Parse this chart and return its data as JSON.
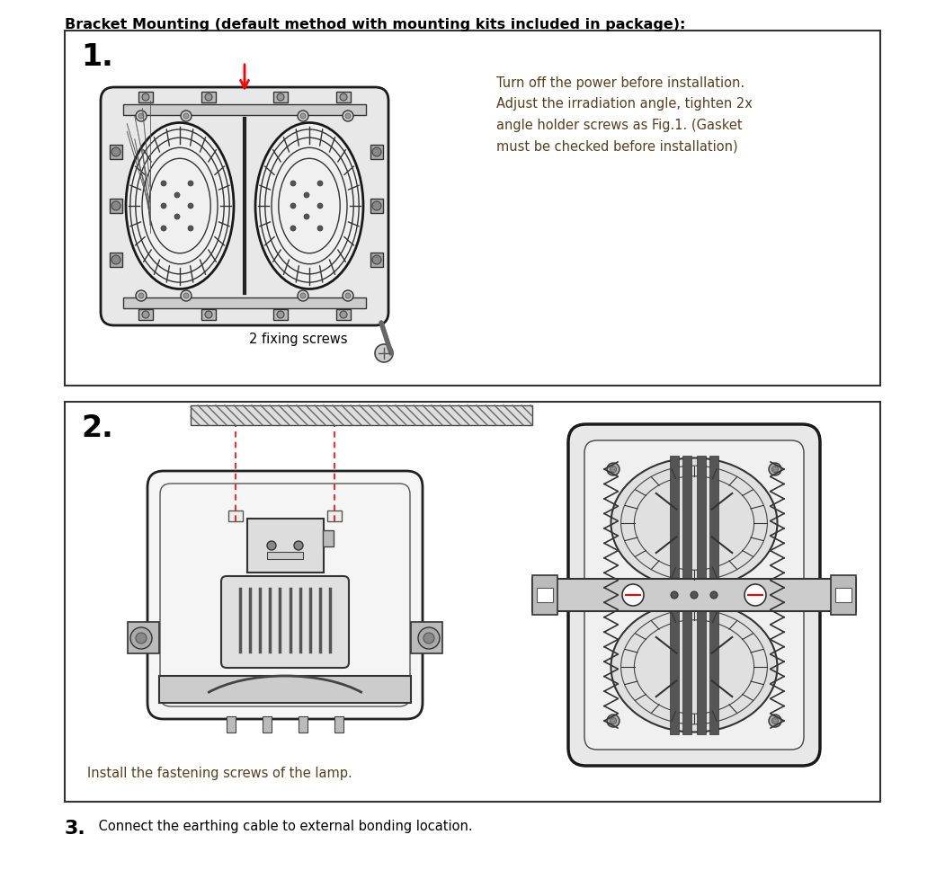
{
  "title": "Bracket Mounting (default method with mounting kits included in package):",
  "title_fontsize": 11.5,
  "bg_color": "#ffffff",
  "box1": {
    "label": "1.",
    "label_fontsize": 24,
    "text": "Turn off the power before installation.\nAdjust the irradiation angle, tighten 2x\nangle holder screws as Fig.1. (Gasket\nmust be checked before installation)",
    "text_color": "#5a3e1b",
    "text_fontsize": 10.5,
    "subtext": "2 fixing screws",
    "subtext_fontsize": 10.5,
    "subtext_color": "#000000"
  },
  "box2": {
    "label": "2.",
    "label_fontsize": 24,
    "text": "Install the fastening screws of the lamp.",
    "text_fontsize": 10.5,
    "text_color": "#5a3e1b"
  },
  "step3": {
    "label": "3.",
    "label_fontsize": 16,
    "label_bold": true,
    "text": " Connect the earthing cable to external bonding location.",
    "text_fontsize": 10.5,
    "text_color": "#000000"
  }
}
